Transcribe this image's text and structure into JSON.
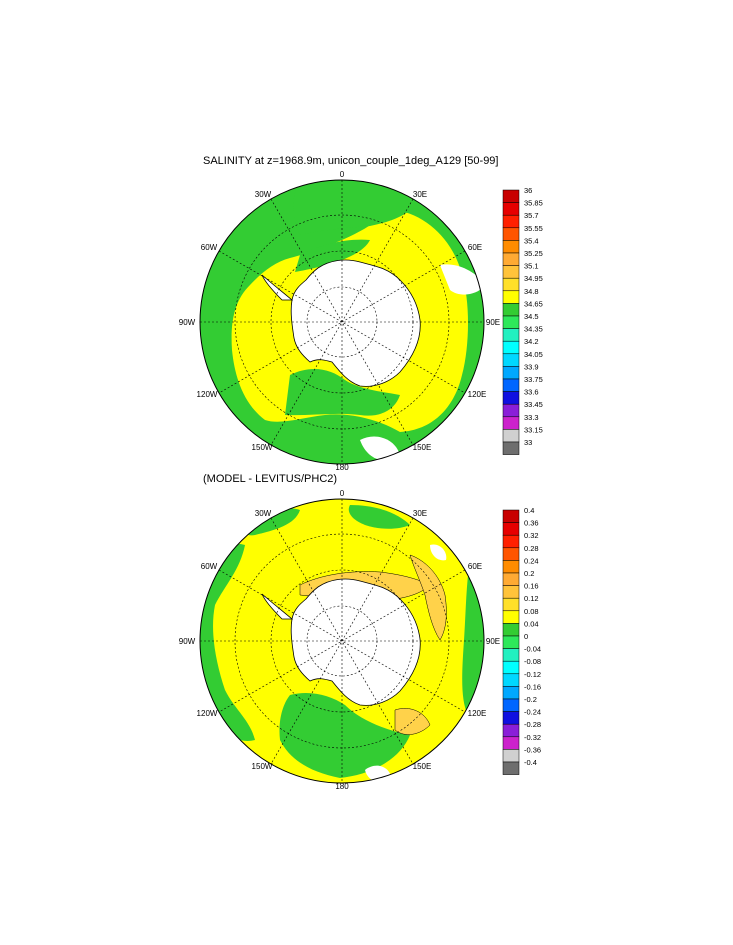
{
  "top": {
    "title": "SALINITY at z=1968.9m, unicon_couple_1deg_A129 [50-99]",
    "colorbar_labels": [
      "36",
      "35.85",
      "35.7",
      "35.55",
      "35.4",
      "35.25",
      "35.1",
      "34.95",
      "34.8",
      "34.65",
      "34.5",
      "34.35",
      "34.2",
      "34.05",
      "33.9",
      "33.75",
      "33.6",
      "33.45",
      "33.3",
      "33.15",
      "33"
    ],
    "colorbar_colors": [
      "#c80000",
      "#e60000",
      "#ff2000",
      "#ff5500",
      "#ff8c00",
      "#ffaa33",
      "#ffc33a",
      "#ffe02a",
      "#ffff00",
      "#33cc33",
      "#2ee85a",
      "#22f0c0",
      "#00ffff",
      "#00d8ff",
      "#00a8ff",
      "#0066ff",
      "#1010e0",
      "#8a1ed8",
      "#cc22cc",
      "#d0d0d0",
      "#6e6e6e"
    ]
  },
  "bottom": {
    "title": "(MODEL - LEVITUS/PHC2)",
    "colorbar_labels": [
      "0.4",
      "0.36",
      "0.32",
      "0.28",
      "0.24",
      "0.2",
      "0.16",
      "0.12",
      "0.08",
      "0.04",
      "0",
      "-0.04",
      "-0.08",
      "-0.12",
      "-0.16",
      "-0.2",
      "-0.24",
      "-0.28",
      "-0.32",
      "-0.36",
      "-0.4"
    ],
    "colorbar_colors": [
      "#c80000",
      "#e60000",
      "#ff2000",
      "#ff5500",
      "#ff8c00",
      "#ffaa33",
      "#ffc33a",
      "#ffe02a",
      "#ffff00",
      "#33cc33",
      "#2ee85a",
      "#22f0c0",
      "#00ffff",
      "#00d8ff",
      "#00a8ff",
      "#0066ff",
      "#1010e0",
      "#8a1ed8",
      "#cc22cc",
      "#d0d0d0",
      "#6e6e6e"
    ]
  },
  "longitude_labels": {
    "lon_0": "0",
    "lon_30e": "30E",
    "lon_60e": "60E",
    "lon_90e": "90E",
    "lon_120e": "120E",
    "lon_150e": "150E",
    "lon_180": "180",
    "lon_150w": "150W",
    "lon_120w": "120W",
    "lon_90w": "90W",
    "lon_60w": "60W",
    "lon_30w": "30W"
  },
  "colors": {
    "green": "#33cc33",
    "yellow": "#ffff00",
    "orange": "#ffd24a",
    "land": "#ffffff",
    "coast": "#000000"
  }
}
